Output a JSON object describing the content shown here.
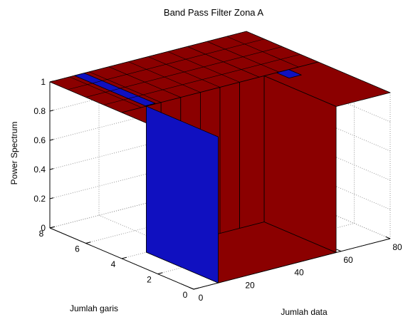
{
  "chart_data": {
    "type": "surface",
    "title": "Band Pass Filter Zona A",
    "zlabel": "Power Spectrum",
    "ylabel": "Jumlah garis",
    "xlabel": "Jumlah data",
    "x_ticks": [
      "0",
      "20",
      "40",
      "60",
      "80"
    ],
    "y_ticks": [
      "0",
      "2",
      "4",
      "6",
      "8"
    ],
    "z_ticks": [
      "0",
      "0.2",
      "0.4",
      "0.6",
      "0.8",
      "1"
    ],
    "xlim": [
      0,
      80
    ],
    "ylim": [
      0,
      8
    ],
    "zlim": [
      0,
      1
    ],
    "grid": true,
    "pass_band_value": 1,
    "stop_band_value": 0,
    "colors": {
      "surface_face": "#8b0000",
      "highlight_face": "#1010c0",
      "edge": "#000000",
      "grid": "#9a9a9a"
    }
  }
}
